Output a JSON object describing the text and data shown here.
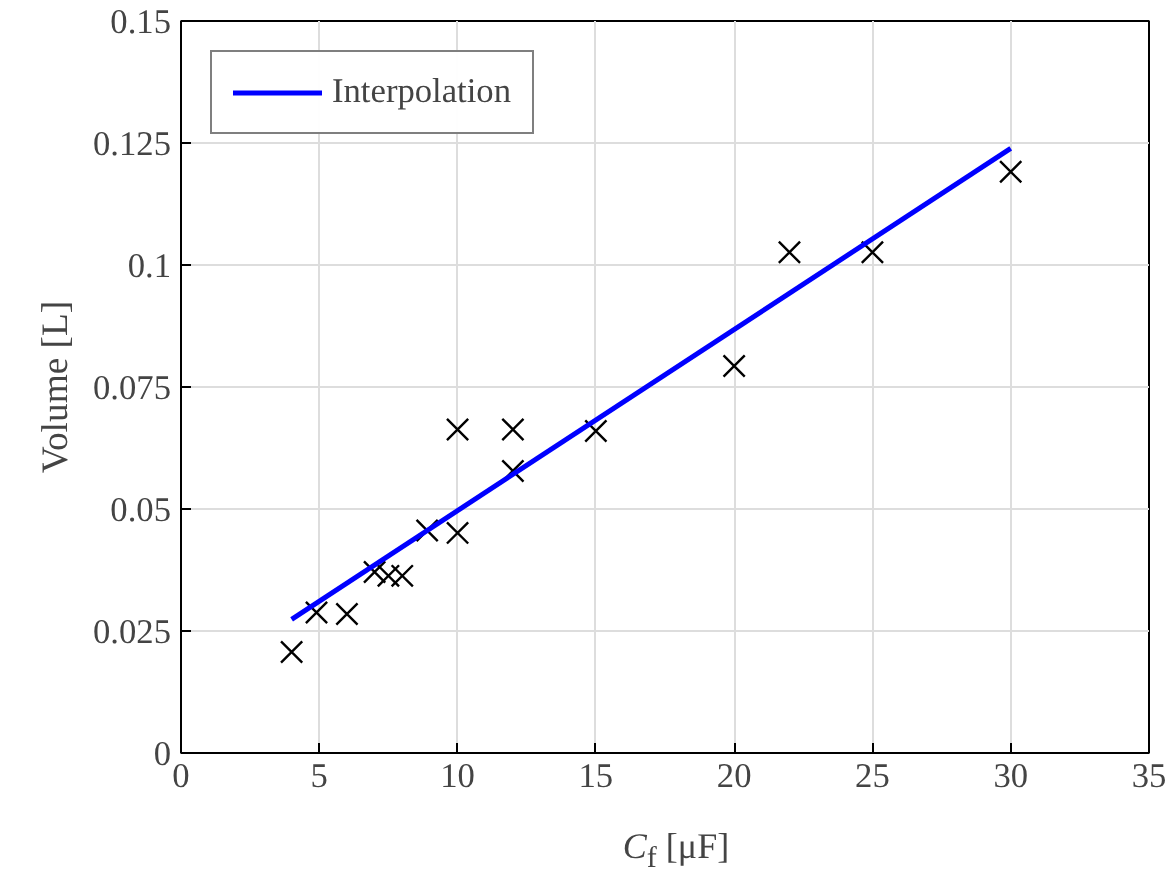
{
  "chart_data": {
    "type": "scatter",
    "xlabel": "C$_{f}$ [μF]",
    "ylabel": "Volume [L]",
    "xlim": [
      0,
      35
    ],
    "ylim": [
      0,
      0.15
    ],
    "xticks": [
      0,
      5,
      10,
      15,
      20,
      25,
      30,
      35
    ],
    "yticks": [
      0,
      0.025,
      0.05,
      0.075,
      0.1,
      0.125,
      0.15
    ],
    "grid": true,
    "legend": "top left",
    "series": [
      {
        "type": "scatter",
        "color": "#000000",
        "marker": "cross",
        "x": [
          4,
          4.9,
          6,
          7,
          7.5,
          8,
          8.9,
          10,
          10,
          12,
          12,
          15,
          20,
          22,
          25,
          30
        ],
        "values": [
          0.0207,
          0.0288,
          0.0285,
          0.0371,
          0.0363,
          0.0363,
          0.0456,
          0.0451,
          0.0663,
          0.0663,
          0.0578,
          0.066,
          0.0793,
          0.1026,
          0.1026,
          0.1191
        ]
      },
      {
        "type": "line",
        "name": "Interpolation",
        "color": "#0000ff",
        "line_style": "solid",
        "x": [
          4,
          30
        ],
        "values": [
          0.0274,
          0.1239
        ]
      }
    ]
  }
}
